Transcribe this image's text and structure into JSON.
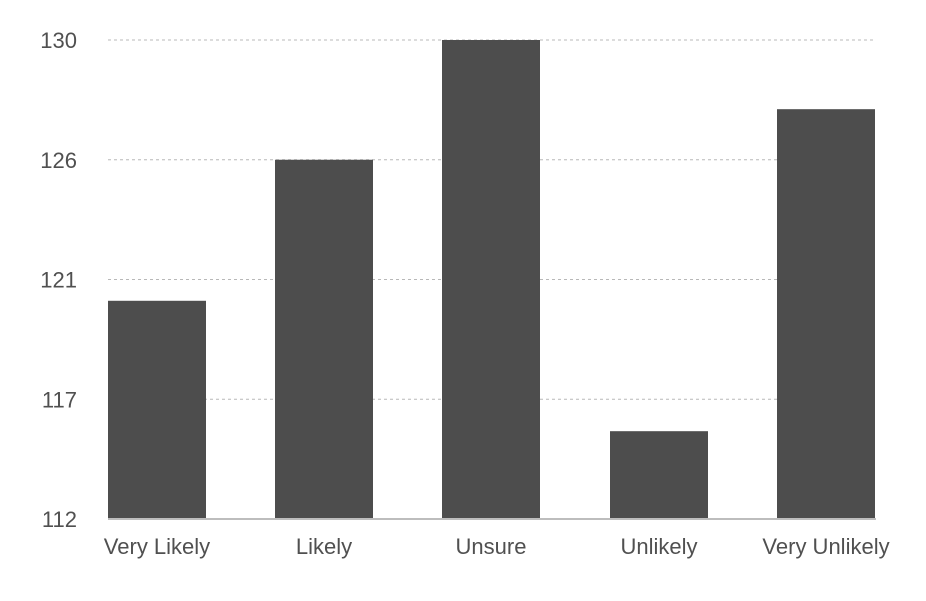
{
  "chart_data": {
    "type": "bar",
    "categories": [
      "Very Likely",
      "Likely",
      "Unsure",
      "Unlikely",
      "Very Unlikely"
    ],
    "values": [
      120.2,
      125.5,
      130,
      115.3,
      127.4
    ],
    "y_ticks": [
      "112",
      "117",
      "121",
      "126",
      "130"
    ],
    "ylim": [
      112,
      130
    ],
    "grid": true,
    "legend": "none",
    "colors": {
      "bar": "#4d4d4d",
      "grid": "#b8b8b8",
      "axis": "#bdbdbd",
      "text": "#505050"
    }
  }
}
